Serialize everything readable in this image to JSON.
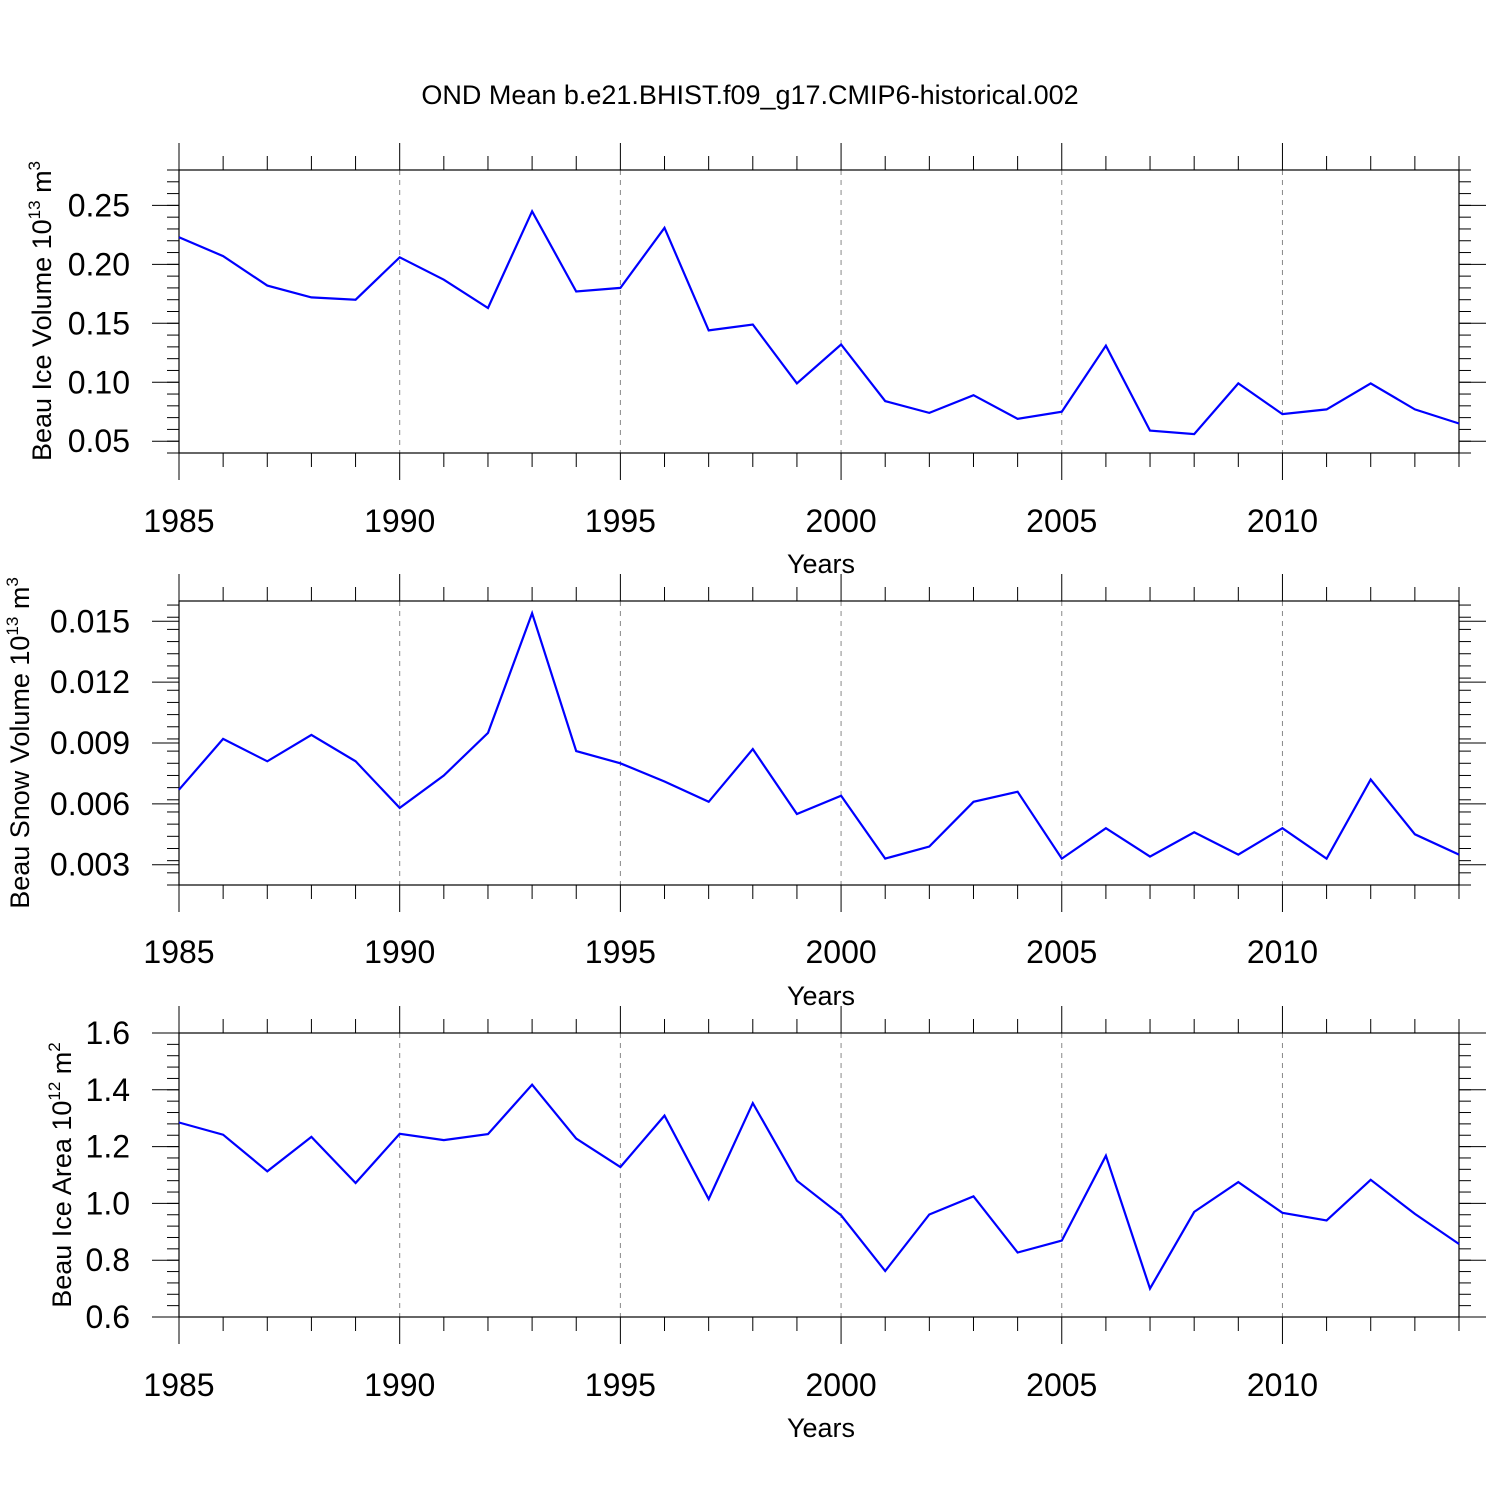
{
  "figure": {
    "title": "OND Mean b.e21.BHIST.f09_g17.CMIP6-historical.002"
  },
  "chart_data": [
    {
      "type": "line",
      "title": "",
      "xlabel": "Years",
      "ylabel": "Beau Ice Volume 10",
      "ylabel_exp": "13",
      "ylabel_unit": "m",
      "ylabel_unit_exp": "3",
      "xlim": [
        1985,
        2014
      ],
      "ylim": [
        0.04,
        0.28
      ],
      "x_ticks": [
        1985,
        1990,
        1995,
        2000,
        2005,
        2010
      ],
      "y_ticks": [
        0.05,
        0.1,
        0.15,
        0.2,
        0.25
      ],
      "y_tick_labels": [
        "0.05",
        "0.10",
        "0.15",
        "0.20",
        "0.25"
      ],
      "y_minor_step": 0.01,
      "grid": "vertical dashed at major x ticks",
      "series": [
        {
          "name": "Beau Ice Volume",
          "color": "#0000ff",
          "x": [
            1985,
            1986,
            1987,
            1988,
            1989,
            1990,
            1991,
            1992,
            1993,
            1994,
            1995,
            1996,
            1997,
            1998,
            1999,
            2000,
            2001,
            2002,
            2003,
            2004,
            2005,
            2006,
            2007,
            2008,
            2009,
            2010,
            2011,
            2012,
            2013,
            2014
          ],
          "values": [
            0.223,
            0.207,
            0.182,
            0.172,
            0.17,
            0.206,
            0.187,
            0.163,
            0.245,
            0.177,
            0.18,
            0.231,
            0.144,
            0.149,
            0.099,
            0.132,
            0.084,
            0.074,
            0.089,
            0.069,
            0.075,
            0.131,
            0.059,
            0.056,
            0.099,
            0.073,
            0.077,
            0.099,
            0.077,
            0.065
          ]
        }
      ]
    },
    {
      "type": "line",
      "title": "",
      "xlabel": "Years",
      "ylabel": "Beau Snow Volume 10",
      "ylabel_exp": "13",
      "ylabel_unit": "m",
      "ylabel_unit_exp": "3",
      "xlim": [
        1985,
        2014
      ],
      "ylim": [
        0.002,
        0.016
      ],
      "x_ticks": [
        1985,
        1990,
        1995,
        2000,
        2005,
        2010
      ],
      "y_ticks": [
        0.003,
        0.006,
        0.009,
        0.012,
        0.015
      ],
      "y_tick_labels": [
        "0.003",
        "0.006",
        "0.009",
        "0.012",
        "0.015"
      ],
      "y_minor_step": 0.0006,
      "grid": "vertical dashed at major x ticks",
      "series": [
        {
          "name": "Beau Snow Volume",
          "color": "#0000ff",
          "x": [
            1985,
            1986,
            1987,
            1988,
            1989,
            1990,
            1991,
            1992,
            1993,
            1994,
            1995,
            1996,
            1997,
            1998,
            1999,
            2000,
            2001,
            2002,
            2003,
            2004,
            2005,
            2006,
            2007,
            2008,
            2009,
            2010,
            2011,
            2012,
            2013,
            2014
          ],
          "values": [
            0.0067,
            0.0092,
            0.0081,
            0.0094,
            0.0081,
            0.0058,
            0.0074,
            0.0095,
            0.0154,
            0.0086,
            0.008,
            0.0071,
            0.0061,
            0.0087,
            0.0055,
            0.0064,
            0.0033,
            0.0039,
            0.0061,
            0.0066,
            0.0033,
            0.0048,
            0.0034,
            0.0046,
            0.0035,
            0.0048,
            0.0033,
            0.0072,
            0.0045,
            0.0035
          ]
        }
      ]
    },
    {
      "type": "line",
      "title": "",
      "xlabel": "Years",
      "ylabel": "Beau Ice Area 10",
      "ylabel_exp": "12",
      "ylabel_unit": "m",
      "ylabel_unit_exp": "2",
      "xlim": [
        1985,
        2014
      ],
      "ylim": [
        0.6,
        1.6
      ],
      "x_ticks": [
        1985,
        1990,
        1995,
        2000,
        2005,
        2010
      ],
      "y_ticks": [
        0.6,
        0.8,
        1.0,
        1.2,
        1.4,
        1.6
      ],
      "y_tick_labels": [
        "0.6",
        "0.8",
        "1.0",
        "1.2",
        "1.4",
        "1.6"
      ],
      "y_minor_step": 0.04,
      "grid": "vertical dashed at major x ticks",
      "series": [
        {
          "name": "Beau Ice Area",
          "color": "#0000ff",
          "x": [
            1985,
            1986,
            1987,
            1988,
            1989,
            1990,
            1991,
            1992,
            1993,
            1994,
            1995,
            1996,
            1997,
            1998,
            1999,
            2000,
            2001,
            2002,
            2003,
            2004,
            2005,
            2006,
            2007,
            2008,
            2009,
            2010,
            2011,
            2012,
            2013,
            2014
          ],
          "values": [
            1.285,
            1.242,
            1.113,
            1.234,
            1.072,
            1.245,
            1.223,
            1.244,
            1.418,
            1.228,
            1.128,
            1.309,
            1.015,
            1.353,
            1.08,
            0.958,
            0.762,
            0.961,
            1.025,
            0.827,
            0.869,
            1.168,
            0.7,
            0.97,
            1.075,
            0.967,
            0.94,
            1.083,
            0.963,
            0.857
          ]
        }
      ]
    }
  ]
}
